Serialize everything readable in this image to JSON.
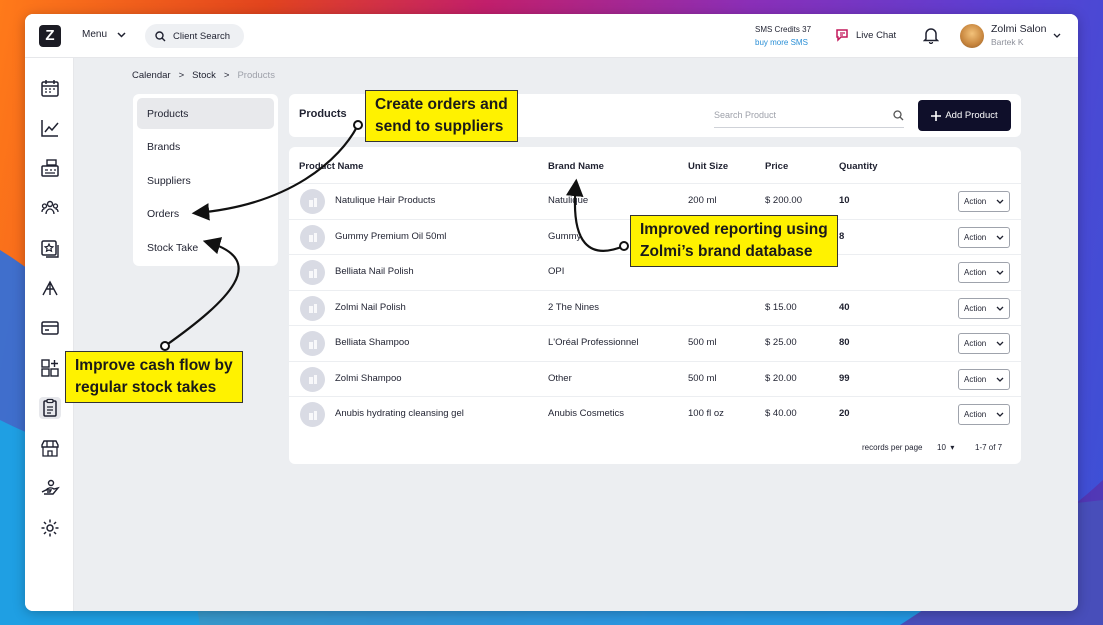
{
  "topbar": {
    "logo": "Z",
    "menu_label": "Menu",
    "search_label": "Client Search",
    "sms_credits": "SMS Credits 37",
    "buy_sms": "buy more SMS",
    "live_chat": "Live Chat",
    "user_name": "Zolmi Salon",
    "user_sub": "Bartek K"
  },
  "breadcrumb": {
    "items": [
      "Calendar",
      "Stock"
    ],
    "separator": ">",
    "current": "Products"
  },
  "subnav": {
    "items": [
      "Products",
      "Brands",
      "Suppliers",
      "Orders",
      "Stock Take"
    ]
  },
  "header": {
    "title": "Products",
    "search_placeholder": "Search Product",
    "add_button": "Add Product"
  },
  "table": {
    "columns": [
      "Product Name",
      "Brand Name",
      "Unit Size",
      "Price",
      "Quantity"
    ],
    "rows": [
      {
        "name": "Natulique Hair Products",
        "brand": "Natulique",
        "size": "200 ml",
        "price": "$ 200.00",
        "qty": "10",
        "action": "Action"
      },
      {
        "name": "Gummy Premium Oil 50ml",
        "brand": "Gummy",
        "size": "",
        "price": "",
        "qty": "8",
        "action": "Action"
      },
      {
        "name": "Belliata Nail Polish",
        "brand": "OPI",
        "size": "",
        "price": "",
        "qty": "",
        "action": "Action"
      },
      {
        "name": "Zolmi Nail Polish",
        "brand": "2 The Nines",
        "size": "",
        "price": "$ 15.00",
        "qty": "40",
        "action": "Action"
      },
      {
        "name": "Belliata Shampoo",
        "brand": "L'Oréal Professionnel",
        "size": "500 ml",
        "price": "$ 25.00",
        "qty": "80",
        "action": "Action"
      },
      {
        "name": "Zolmi Shampoo",
        "brand": "Other",
        "size": "500 ml",
        "price": "$ 20.00",
        "qty": "99",
        "action": "Action"
      },
      {
        "name": "Anubis hydrating cleansing gel",
        "brand": "Anubis Cosmetics",
        "size": "100 fl oz",
        "price": "$ 40.00",
        "qty": "20",
        "action": "Action"
      }
    ],
    "records_label": "records per page",
    "records_value": "10",
    "range": "1-7 of 7"
  },
  "callouts": {
    "orders": [
      "Create orders and",
      "send to suppliers"
    ],
    "reporting": [
      "Improved reporting using",
      "Zolmi’s brand database"
    ],
    "stocktake": [
      "Improve cash flow by",
      "regular stock takes"
    ]
  },
  "colors": {
    "callout": "#fff200",
    "primary_button": "#0f0f2a",
    "link": "#2a8fd6"
  }
}
